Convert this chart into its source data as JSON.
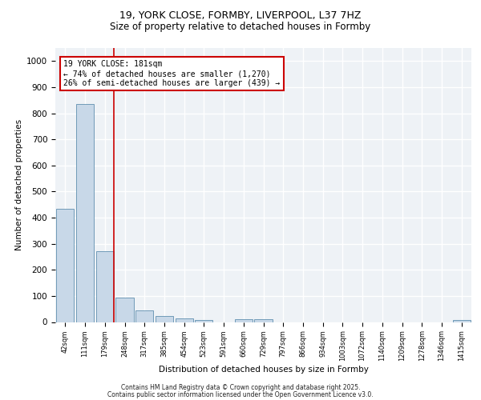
{
  "title_line1": "19, YORK CLOSE, FORMBY, LIVERPOOL, L37 7HZ",
  "title_line2": "Size of property relative to detached houses in Formby",
  "xlabel": "Distribution of detached houses by size in Formby",
  "ylabel": "Number of detached properties",
  "categories": [
    "42sqm",
    "111sqm",
    "179sqm",
    "248sqm",
    "317sqm",
    "385sqm",
    "454sqm",
    "523sqm",
    "591sqm",
    "660sqm",
    "729sqm",
    "797sqm",
    "866sqm",
    "934sqm",
    "1003sqm",
    "1072sqm",
    "1140sqm",
    "1209sqm",
    "1278sqm",
    "1346sqm",
    "1415sqm"
  ],
  "values": [
    435,
    835,
    270,
    95,
    45,
    22,
    15,
    8,
    0,
    10,
    10,
    0,
    0,
    0,
    0,
    0,
    0,
    0,
    0,
    0,
    8
  ],
  "bar_color": "#c8d8e8",
  "bar_edge_color": "#5f8faf",
  "vline_color": "#cc0000",
  "vline_x": 2.5,
  "annotation_text": "19 YORK CLOSE: 181sqm\n← 74% of detached houses are smaller (1,270)\n26% of semi-detached houses are larger (439) →",
  "annotation_box_color": "white",
  "annotation_box_edge": "#cc0000",
  "ylim": [
    0,
    1050
  ],
  "yticks": [
    0,
    100,
    200,
    300,
    400,
    500,
    600,
    700,
    800,
    900,
    1000
  ],
  "footer_line1": "Contains HM Land Registry data © Crown copyright and database right 2025.",
  "footer_line2": "Contains public sector information licensed under the Open Government Licence v3.0.",
  "background_color": "#eef2f6",
  "grid_color": "#ffffff",
  "fig_background": "#ffffff"
}
